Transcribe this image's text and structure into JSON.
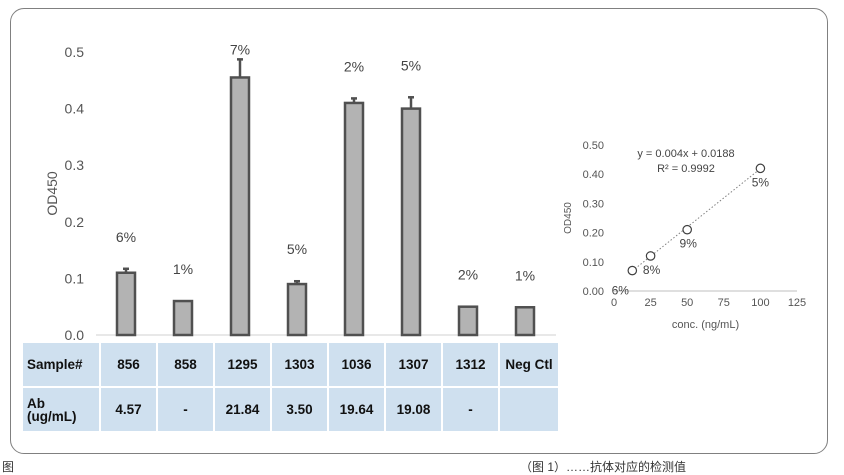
{
  "chart_data": [
    {
      "type": "bar",
      "ylabel": "OD450",
      "ylim": [
        0,
        0.5
      ],
      "yticks": [
        "0.0",
        "0.1",
        "0.2",
        "0.3",
        "0.4",
        "0.5"
      ],
      "categories": [
        "856",
        "858",
        "1295",
        "1303",
        "1036",
        "1307",
        "1312",
        "Neg Ctl"
      ],
      "values": [
        0.11,
        0.06,
        0.455,
        0.09,
        0.41,
        0.4,
        0.05,
        0.049
      ],
      "errors": [
        0.007,
        0.0,
        0.032,
        0.005,
        0.008,
        0.02,
        0.0,
        0.0
      ],
      "cv_labels": [
        "6%",
        "1%",
        "7%",
        "5%",
        "2%",
        "5%",
        "2%",
        "1%"
      ],
      "bar_color": "#b3b3b3",
      "bar_edge": "#505050",
      "grid": false
    },
    {
      "type": "scatter",
      "xlabel": "conc. (ng/mL)",
      "ylabel": "OD450",
      "xlim": [
        0,
        125
      ],
      "ylim": [
        0,
        0.5
      ],
      "xticks": [
        "0",
        "25",
        "50",
        "75",
        "100",
        "125"
      ],
      "yticks": [
        "0.00",
        "0.10",
        "0.20",
        "0.30",
        "0.40",
        "0.50"
      ],
      "x": [
        12.5,
        25,
        50,
        100
      ],
      "y": [
        0.07,
        0.12,
        0.21,
        0.42
      ],
      "point_labels": [
        "6%",
        "8%",
        "9%",
        "5%"
      ],
      "trendline": {
        "slope": 0.004,
        "intercept": 0.0188
      },
      "equation": "y = 0.004x + 0.0188",
      "r_squared": "R² = 0.9992",
      "grid": false
    }
  ],
  "table": {
    "row1_header": "Sample#",
    "samples": [
      "856",
      "858",
      "1295",
      "1303",
      "1036",
      "1307",
      "1312",
      "Neg Ctl"
    ],
    "row2_header_line1": "Ab",
    "row2_header_line2": "(ug/mL)",
    "ab_values": [
      "4.57",
      "-",
      "21.84",
      "3.50",
      "19.64",
      "19.08",
      "-",
      ""
    ]
  },
  "footer": {
    "left": "图",
    "right": "（图 1）……抗体对应的检测值"
  }
}
